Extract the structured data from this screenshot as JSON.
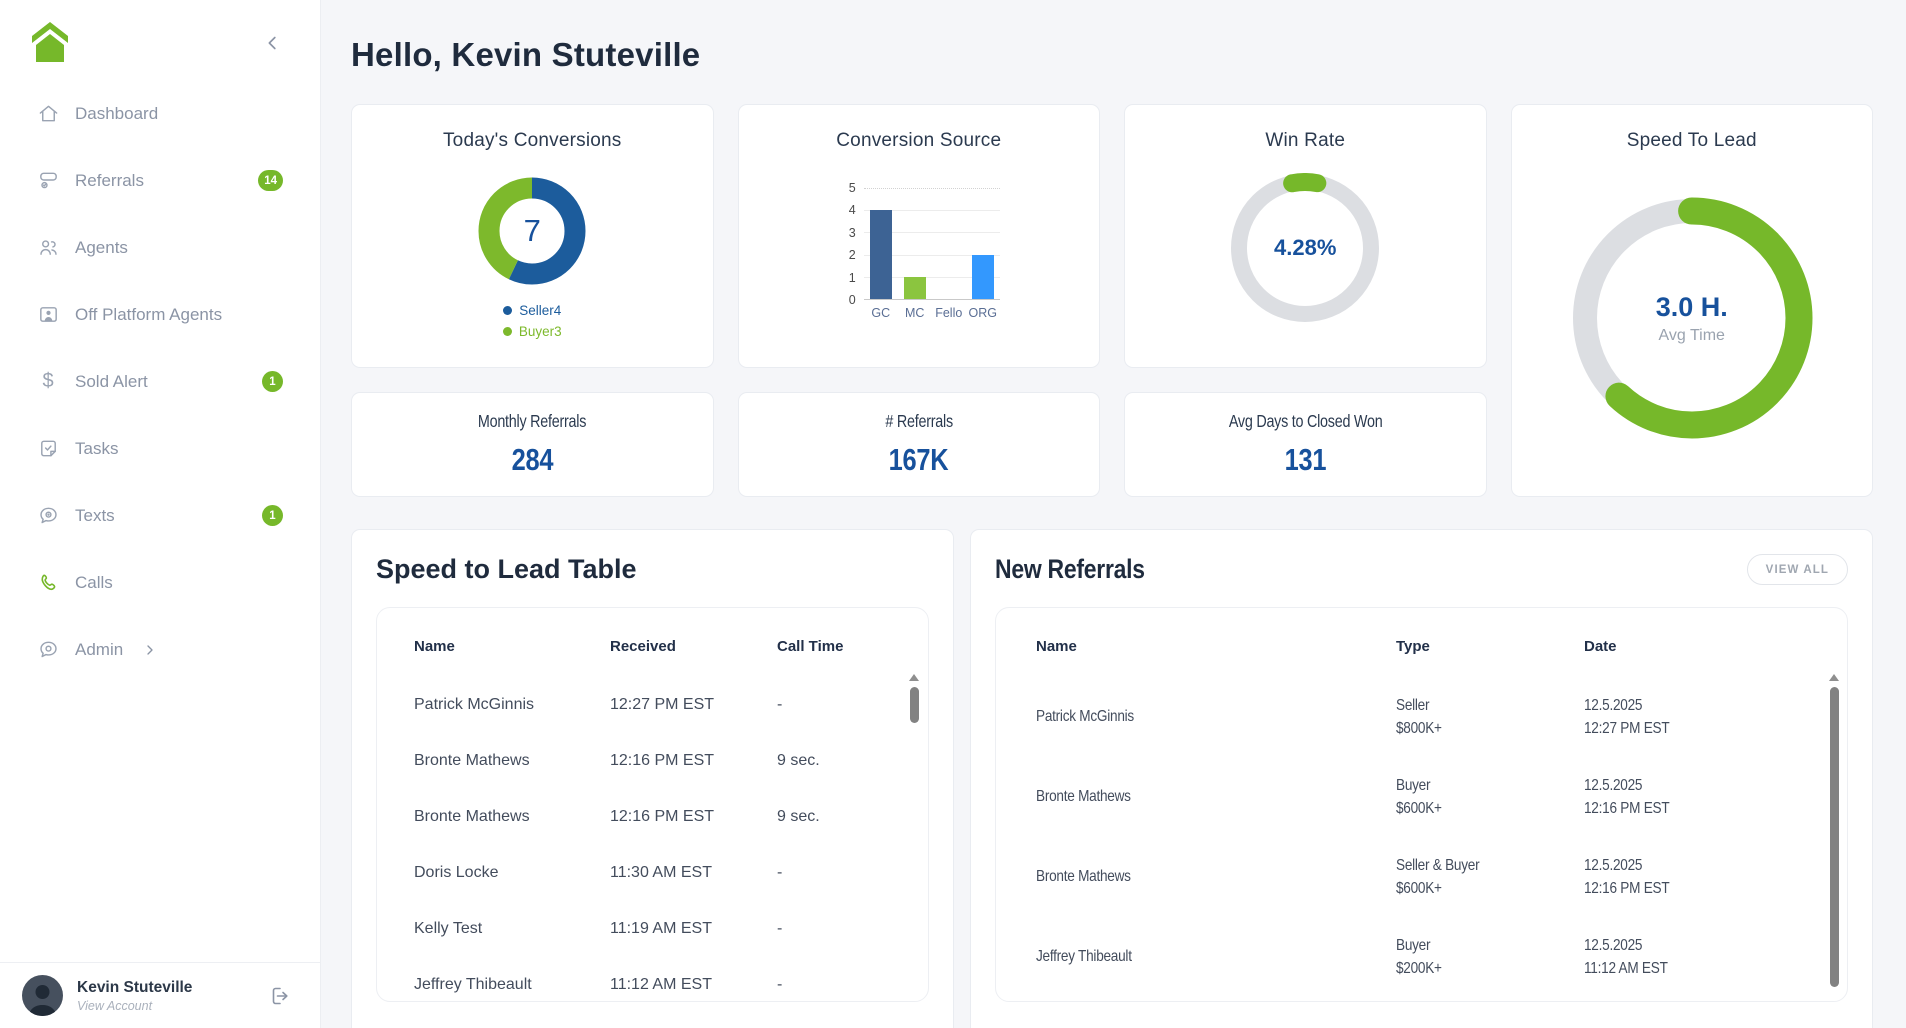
{
  "theme": {
    "accent_green": "#76b82a",
    "navy": "#1c5c9c",
    "stat_blue": "#17519c",
    "bright_blue": "#3398fe",
    "track_gray": "#dcdee2",
    "bg": "#f5f6f9"
  },
  "icons": {
    "logo": "green-house",
    "collapse": "chevron-left",
    "admin_expand": "chevron-right",
    "sold_alert_glyph": "$",
    "logout": "logout-door-arrow"
  },
  "sidebar": {
    "items": [
      {
        "label": "Dashboard",
        "badge": ""
      },
      {
        "label": "Referrals",
        "badge": "14"
      },
      {
        "label": "Agents",
        "badge": ""
      },
      {
        "label": "Off Platform Agents",
        "badge": ""
      },
      {
        "label": "Sold Alert",
        "badge": "1"
      },
      {
        "label": "Tasks",
        "badge": ""
      },
      {
        "label": "Texts",
        "badge": "1"
      },
      {
        "label": "Calls",
        "badge": ""
      },
      {
        "label": "Admin",
        "badge": ""
      }
    ],
    "user": {
      "name": "Kevin Stuteville",
      "sub": "View Account"
    }
  },
  "header": {
    "greeting": "Hello, Kevin Stuteville"
  },
  "chart_data": [
    {
      "type": "donut",
      "title": "Today's Conversions",
      "center_label": "7",
      "series": [
        {
          "name": "Seller",
          "value": 4,
          "color": "#1c5c9c",
          "legend_label": "Seller4"
        },
        {
          "name": "Buyer",
          "value": 3,
          "color": "#7db92c",
          "legend_label": "Buyer3"
        }
      ]
    },
    {
      "type": "bar",
      "title": "Conversion Source",
      "categories": [
        "GC",
        "MC",
        "Fello",
        "ORG"
      ],
      "values": [
        4,
        1,
        0,
        2
      ],
      "colors": [
        "#3d6394",
        "#8bc53f",
        "#cccccc",
        "#3398fe"
      ],
      "dotted_index": 1,
      "ylim": [
        0,
        5
      ],
      "yticks": [
        "5",
        "4",
        "3",
        "2",
        "1",
        "0"
      ]
    },
    {
      "type": "donut",
      "title": "Win Rate",
      "center_label": "4.28%",
      "value_pct": 4.28,
      "arc_color": "#76b82a",
      "track_color": "#dcdee2"
    },
    {
      "type": "donut",
      "title": "Speed To Lead",
      "center_label": "3.0 H.",
      "center_sublabel": "Avg Time",
      "value_pct": 62,
      "arc_color": "#76b82a",
      "track_color": "#dcdee2"
    }
  ],
  "stats": [
    {
      "label": "Monthly Referrals",
      "value": "284"
    },
    {
      "label": "# Referrals",
      "value": "167K"
    },
    {
      "label": "Avg Days to Closed Won",
      "value": "131"
    }
  ],
  "speed_table": {
    "title": "Speed to Lead Table",
    "columns": [
      "Name",
      "Received",
      "Call Time"
    ],
    "rows": [
      {
        "name": "Patrick McGinnis",
        "received": "12:27 PM EST",
        "call_time": "-"
      },
      {
        "name": "Bronte Mathews",
        "received": "12:16 PM EST",
        "call_time": "9 sec."
      },
      {
        "name": "Bronte Mathews",
        "received": "12:16 PM EST",
        "call_time": "9 sec."
      },
      {
        "name": "Doris Locke",
        "received": "11:30 AM EST",
        "call_time": "-"
      },
      {
        "name": "Kelly Test",
        "received": "11:19 AM EST",
        "call_time": "-"
      },
      {
        "name": "Jeffrey Thibeault",
        "received": "11:12 AM EST",
        "call_time": "-"
      }
    ]
  },
  "referrals_table": {
    "title": "New Referrals",
    "view_all": "VIEW ALL",
    "columns": [
      "Name",
      "Type",
      "Date"
    ],
    "rows": [
      {
        "name": "Patrick McGinnis",
        "type": {
          "line1": "Seller",
          "line2": "$800K+"
        },
        "date": {
          "line1": "12.5.2025",
          "line2": "12:27 PM EST"
        }
      },
      {
        "name": "Bronte Mathews",
        "type": {
          "line1": "Buyer",
          "line2": "$600K+"
        },
        "date": {
          "line1": "12.5.2025",
          "line2": "12:16 PM EST"
        }
      },
      {
        "name": "Bronte Mathews",
        "type": {
          "line1": "Seller & Buyer",
          "line2": "$600K+"
        },
        "date": {
          "line1": "12.5.2025",
          "line2": "12:16 PM EST"
        }
      },
      {
        "name": "Jeffrey Thibeault",
        "type": {
          "line1": "Buyer",
          "line2": "$200K+"
        },
        "date": {
          "line1": "12.5.2025",
          "line2": "11:12 AM EST"
        }
      }
    ]
  }
}
